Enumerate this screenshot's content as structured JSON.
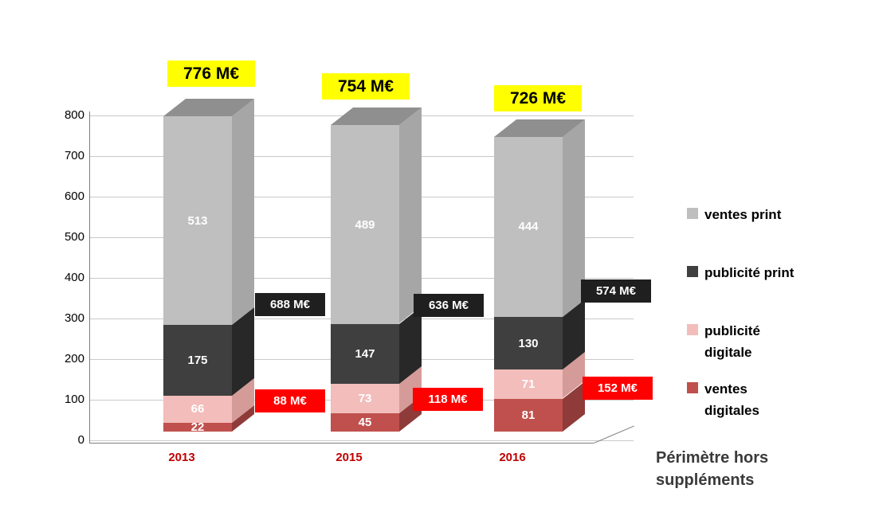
{
  "chart_data": {
    "type": "bar",
    "variant": "3d-stacked-column",
    "title": "",
    "categories": [
      "2013",
      "2015",
      "2016"
    ],
    "series": [
      {
        "key": "ventes-digitales",
        "name": "ventes digitales",
        "values": [
          22,
          45,
          81
        ],
        "color": "#C0504D",
        "side_color": "#8F3B39",
        "label_color": "#FFFFFF"
      },
      {
        "key": "publicite-digitale",
        "name": "publicité digitale",
        "values": [
          66,
          73,
          71
        ],
        "color": "#F2BDBB",
        "side_color": "#D59B98",
        "label_color": "#FFFFFF"
      },
      {
        "key": "publicite-print",
        "name": "publicité print",
        "values": [
          175,
          147,
          130
        ],
        "color": "#3F3F3F",
        "side_color": "#282828",
        "label_color": "#FFFFFF"
      },
      {
        "key": "ventes-print",
        "name": "ventes print",
        "values": [
          513,
          489,
          444
        ],
        "color": "#BFBFBF",
        "side_color": "#A6A6A6",
        "top_color": "#8F8F8F",
        "label_color": "#FFFFFF"
      }
    ],
    "stack_order": "bottom_to_top",
    "totals": {
      "values": [
        "776 M€",
        "754 M€",
        "726 M€"
      ],
      "bg_color": "#FFFF00",
      "text_color": "#000000"
    },
    "print_totals": {
      "values": [
        "688 M€",
        "636 M€",
        "574 M€"
      ],
      "bg_color": "#1F1F1F",
      "text_color": "#FFFFFF"
    },
    "digital_totals": {
      "values": [
        "88 M€",
        "118 M€",
        "152 M€"
      ],
      "bg_color": "#FF0000",
      "text_color": "#FFFFFF"
    },
    "y_axis": {
      "min": 0,
      "max": 800,
      "step": 100
    },
    "x_axis": {
      "tick_color": "#C00000"
    },
    "grid": true,
    "legend_position": "right",
    "legend": [
      {
        "key": "ventes-print",
        "label": "ventes print",
        "color": "#BFBFBF"
      },
      {
        "key": "publicite-print",
        "label": "publicité print",
        "color": "#3F3F3F"
      },
      {
        "key": "publicite-digitale",
        "label": "publicité\ndigitale",
        "color": "#F2BDBB"
      },
      {
        "key": "ventes-digitales",
        "label": "ventes\ndigitales",
        "color": "#C0504D"
      }
    ],
    "note": "Périmètre hors\nsuppléments"
  }
}
